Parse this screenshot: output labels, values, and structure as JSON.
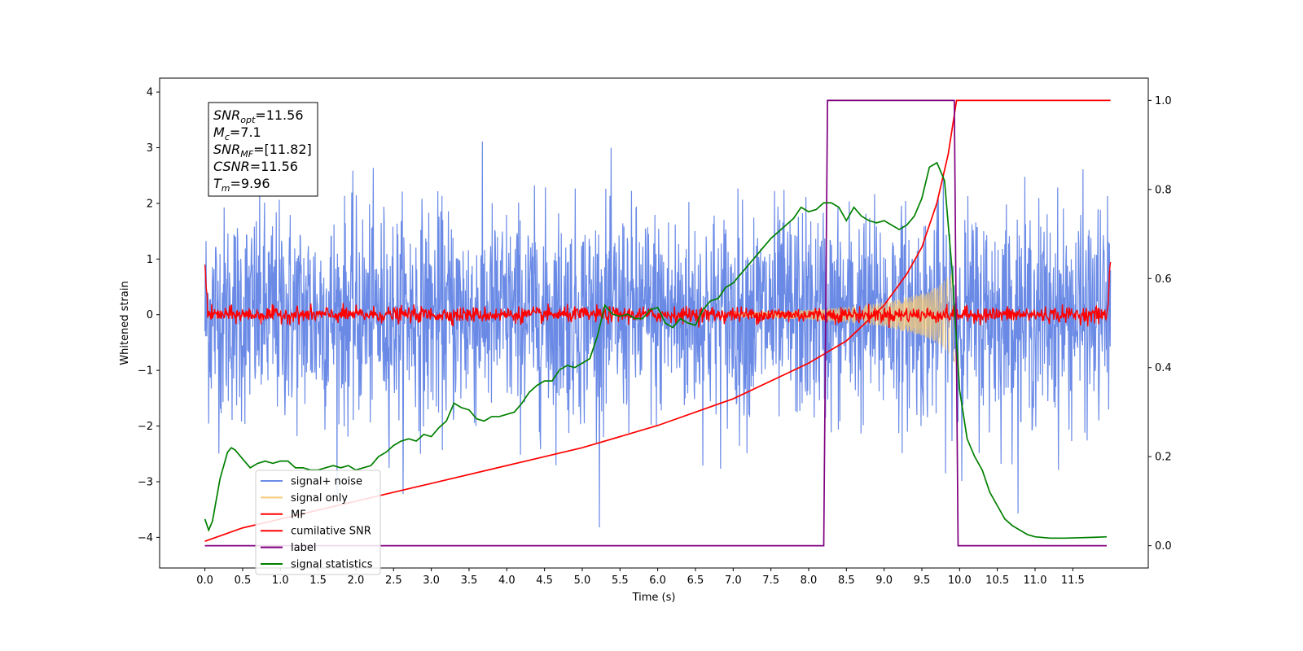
{
  "chart_data": {
    "type": "line",
    "xlabel": "Time (s)",
    "ylabel": "Whitened strain",
    "xlim": [
      -0.6,
      12.5
    ],
    "ylim": [
      -4.55,
      4.25
    ],
    "y2lim": [
      -0.05,
      1.05
    ],
    "x_ticks": [
      "0.0",
      "0.5",
      "1.0",
      "1.5",
      "2.0",
      "2.5",
      "3.0",
      "3.5",
      "4.0",
      "4.5",
      "5.0",
      "5.5",
      "6.0",
      "6.5",
      "7.0",
      "7.5",
      "8.0",
      "8.5",
      "9.0",
      "9.5",
      "10.0",
      "10.5",
      "11.0",
      "11.5"
    ],
    "y_ticks": [
      "4",
      "3",
      "2",
      "1",
      "0",
      "−1",
      "−2",
      "−3",
      "−4"
    ],
    "y2_ticks": [
      "1.0",
      "0.8",
      "0.6",
      "0.4",
      "0.2",
      "0.0"
    ],
    "grid": false,
    "legend_position": "lower-left",
    "annotation": {
      "lines": [
        {
          "main": "SNR",
          "sub": "opt",
          "value": "=11.56"
        },
        {
          "main": "M",
          "sub": "c",
          "value": "=7.1"
        },
        {
          "main": "SNR",
          "sub": "MF",
          "value": "=[11.82]"
        },
        {
          "main": "CSNR",
          "sub": "",
          "value": "=11.56"
        },
        {
          "main": "T",
          "sub": "m",
          "value": "=9.96"
        }
      ]
    },
    "series": [
      {
        "name": "signal+ noise",
        "color": "#6a8ae6",
        "axis": "left",
        "kind": "noise",
        "amplitude_rms": 1.0,
        "x_range": [
          0,
          12
        ]
      },
      {
        "name": "signal only",
        "color": "#f5c978",
        "axis": "left",
        "kind": "chirp_envelope",
        "x": [
          7.0,
          7.5,
          8.0,
          8.5,
          9.0,
          9.5,
          9.7,
          9.9,
          9.96
        ],
        "envelope": [
          0.04,
          0.06,
          0.09,
          0.14,
          0.22,
          0.38,
          0.5,
          0.75,
          0.95
        ]
      },
      {
        "name": "MF",
        "color": "#ff0000",
        "axis": "left",
        "kind": "noise_band",
        "amplitude_rms": 0.07,
        "x_range": [
          0,
          12
        ]
      },
      {
        "name": "cumilative SNR",
        "color": "#ff0000",
        "axis": "right",
        "x": [
          0.0,
          0.5,
          1.0,
          1.5,
          2.0,
          3.0,
          4.0,
          5.0,
          6.0,
          7.0,
          8.0,
          8.5,
          9.0,
          9.3,
          9.5,
          9.7,
          9.85,
          9.96,
          12.0
        ],
        "y": [
          0.01,
          0.04,
          0.06,
          0.08,
          0.1,
          0.14,
          0.18,
          0.22,
          0.27,
          0.33,
          0.41,
          0.46,
          0.54,
          0.61,
          0.67,
          0.77,
          0.88,
          1.0,
          1.0
        ]
      },
      {
        "name": "label",
        "color": "#800080",
        "axis": "right",
        "x": [
          0.0,
          8.2,
          8.25,
          9.93,
          9.98,
          11.95
        ],
        "y": [
          0.0,
          0.0,
          1.0,
          1.0,
          0.0,
          0.0
        ]
      },
      {
        "name": "signal statistics",
        "color": "#008000",
        "axis": "right",
        "x": [
          0.0,
          0.05,
          0.1,
          0.2,
          0.3,
          0.35,
          0.4,
          0.5,
          0.6,
          0.7,
          0.8,
          0.9,
          1.0,
          1.1,
          1.2,
          1.3,
          1.4,
          1.5,
          1.6,
          1.7,
          1.8,
          1.9,
          2.0,
          2.1,
          2.2,
          2.3,
          2.4,
          2.5,
          2.6,
          2.7,
          2.8,
          2.9,
          3.0,
          3.1,
          3.2,
          3.3,
          3.4,
          3.5,
          3.6,
          3.7,
          3.8,
          3.9,
          4.0,
          4.1,
          4.2,
          4.3,
          4.4,
          4.5,
          4.6,
          4.7,
          4.8,
          4.9,
          5.0,
          5.1,
          5.2,
          5.3,
          5.4,
          5.5,
          5.6,
          5.7,
          5.8,
          5.9,
          6.0,
          6.1,
          6.2,
          6.3,
          6.4,
          6.5,
          6.6,
          6.7,
          6.8,
          6.9,
          7.0,
          7.1,
          7.2,
          7.3,
          7.4,
          7.5,
          7.6,
          7.7,
          7.8,
          7.9,
          8.0,
          8.1,
          8.2,
          8.3,
          8.4,
          8.5,
          8.6,
          8.7,
          8.8,
          8.9,
          9.0,
          9.1,
          9.2,
          9.3,
          9.4,
          9.5,
          9.6,
          9.7,
          9.8,
          9.9,
          10.0,
          10.1,
          10.2,
          10.3,
          10.4,
          10.5,
          10.6,
          10.7,
          10.8,
          10.9,
          11.0,
          11.2,
          11.4,
          11.6,
          11.8,
          11.95
        ],
        "y": [
          0.06,
          0.035,
          0.055,
          0.15,
          0.21,
          0.22,
          0.215,
          0.195,
          0.175,
          0.185,
          0.19,
          0.185,
          0.19,
          0.19,
          0.175,
          0.175,
          0.17,
          0.17,
          0.175,
          0.18,
          0.175,
          0.18,
          0.17,
          0.175,
          0.18,
          0.2,
          0.21,
          0.225,
          0.235,
          0.24,
          0.235,
          0.25,
          0.245,
          0.265,
          0.28,
          0.32,
          0.31,
          0.305,
          0.285,
          0.28,
          0.29,
          0.29,
          0.295,
          0.3,
          0.32,
          0.345,
          0.36,
          0.37,
          0.37,
          0.395,
          0.405,
          0.4,
          0.41,
          0.42,
          0.47,
          0.54,
          0.52,
          0.515,
          0.52,
          0.51,
          0.51,
          0.53,
          0.535,
          0.5,
          0.49,
          0.51,
          0.5,
          0.495,
          0.53,
          0.55,
          0.555,
          0.58,
          0.59,
          0.61,
          0.63,
          0.65,
          0.67,
          0.69,
          0.705,
          0.72,
          0.735,
          0.76,
          0.75,
          0.755,
          0.77,
          0.77,
          0.76,
          0.73,
          0.76,
          0.74,
          0.73,
          0.725,
          0.73,
          0.72,
          0.71,
          0.72,
          0.74,
          0.78,
          0.85,
          0.86,
          0.82,
          0.62,
          0.35,
          0.24,
          0.2,
          0.17,
          0.12,
          0.09,
          0.06,
          0.045,
          0.035,
          0.025,
          0.02,
          0.017,
          0.017,
          0.018,
          0.019,
          0.02
        ]
      }
    ]
  }
}
